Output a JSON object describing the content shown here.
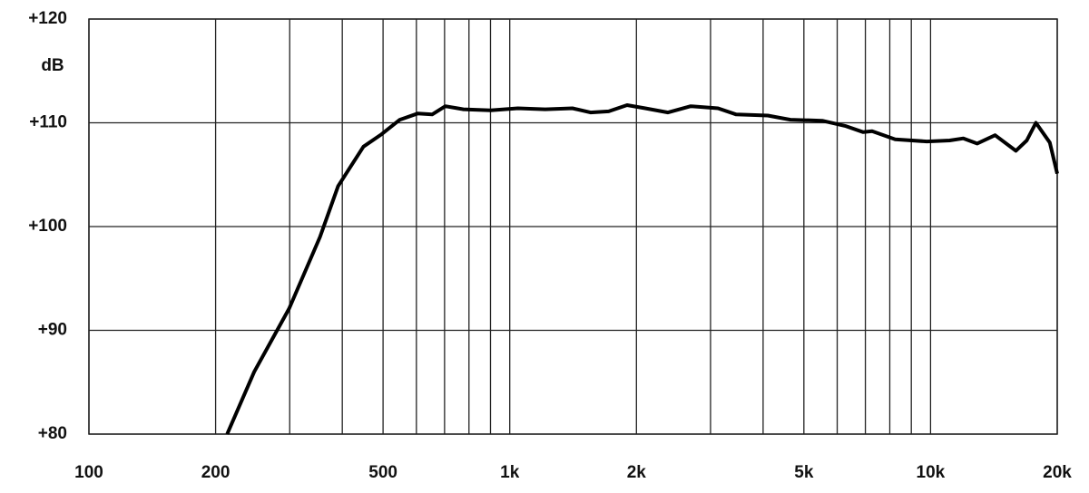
{
  "chart_data": {
    "type": "line",
    "y_label": "dB",
    "x": [
      213,
      247,
      299,
      354,
      391,
      449,
      496,
      548,
      605,
      654,
      703,
      776,
      901,
      1045,
      1214,
      1409,
      1556,
      1718,
      1900,
      2099,
      2377,
      2692,
      3126,
      3452,
      4105,
      4645,
      5530,
      6263,
      6918,
      7261,
      8240,
      9800,
      11100,
      11970,
      12900,
      14230,
      15950,
      16930,
      17800,
      19200,
      20000
    ],
    "series": [
      {
        "color": "#000000",
        "values": [
          80,
          86.0,
          92.1,
          99.0,
          103.9,
          107.7,
          108.9,
          110.3,
          110.9,
          110.8,
          111.6,
          111.3,
          111.2,
          111.4,
          111.3,
          111.4,
          111.0,
          111.1,
          111.7,
          111.4,
          111.0,
          111.6,
          111.4,
          110.8,
          110.7,
          110.3,
          110.2,
          109.7,
          109.1,
          109.2,
          108.4,
          108.2,
          108.3,
          108.5,
          108.0,
          108.8,
          107.3,
          108.3,
          110.0,
          108.1,
          105.1
        ]
      }
    ],
    "xlog": true,
    "xlim": [
      100,
      20000
    ],
    "ylim": [
      80,
      120
    ],
    "xticks": [
      100,
      200,
      500,
      {
        "value": 1000,
        "label": "1k"
      },
      {
        "value": 2000,
        "label": "2k"
      },
      {
        "value": 5000,
        "label": "5k"
      },
      {
        "value": 10000,
        "label": "10k"
      },
      {
        "value": 20000,
        "label": "20k"
      }
    ],
    "xminor": [
      300,
      400,
      600,
      700,
      800,
      900,
      3000,
      4000,
      6000,
      7000,
      8000,
      9000
    ],
    "yticks": [
      {
        "value": 80,
        "label": "+80"
      },
      {
        "value": 90,
        "label": "+90"
      },
      {
        "value": 100,
        "label": "+100"
      },
      {
        "value": 110,
        "label": "+110"
      },
      {
        "value": 120,
        "label": "+120"
      }
    ],
    "grid": true
  }
}
